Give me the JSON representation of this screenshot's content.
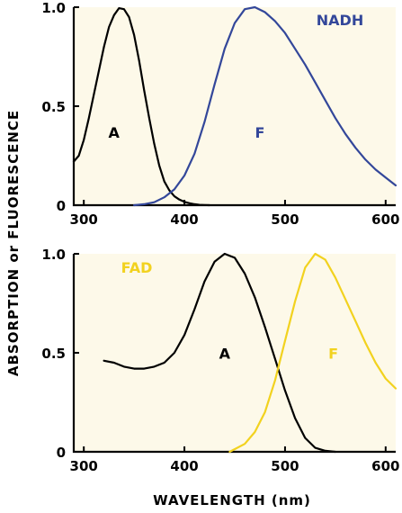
{
  "ylabel": "ABSORPTION or FLUORESCENCE",
  "xlabel": "WAVELENGTH (nm)",
  "colors": {
    "black": "#000000",
    "blue": "#33479a",
    "yellow": "#f2d21f",
    "background": "#fdf9e9"
  },
  "chart_data": [
    {
      "type": "line",
      "compound": "NADH",
      "compound_color": "#33479a",
      "xlim": [
        290,
        610
      ],
      "ylim": [
        0,
        1.0
      ],
      "xticks": [
        300,
        400,
        500,
        600
      ],
      "yticks": [
        0,
        0.5,
        1.0
      ],
      "ytick_labels": [
        "0",
        "0.5",
        "1.0"
      ],
      "series": [
        {
          "name": "A",
          "color": "#000000",
          "label_at": [
            330,
            0.34
          ],
          "x": [
            290,
            295,
            300,
            305,
            310,
            315,
            320,
            325,
            330,
            335,
            340,
            345,
            350,
            355,
            360,
            365,
            370,
            375,
            380,
            385,
            390,
            395,
            400,
            405,
            410,
            415,
            420,
            425
          ],
          "y": [
            0.22,
            0.25,
            0.33,
            0.44,
            0.56,
            0.68,
            0.8,
            0.9,
            0.96,
            0.995,
            0.99,
            0.95,
            0.86,
            0.73,
            0.58,
            0.44,
            0.31,
            0.2,
            0.12,
            0.075,
            0.045,
            0.028,
            0.017,
            0.01,
            0.005,
            0.002,
            0.001,
            0.0
          ]
        },
        {
          "name": "F",
          "color": "#33479a",
          "label_at": [
            475,
            0.34
          ],
          "x": [
            350,
            360,
            370,
            380,
            390,
            400,
            410,
            420,
            430,
            440,
            450,
            460,
            470,
            480,
            490,
            500,
            510,
            520,
            530,
            540,
            550,
            560,
            570,
            580,
            590,
            600,
            610
          ],
          "y": [
            0.0,
            0.005,
            0.015,
            0.04,
            0.08,
            0.15,
            0.26,
            0.42,
            0.61,
            0.79,
            0.92,
            0.99,
            1.0,
            0.975,
            0.93,
            0.87,
            0.79,
            0.71,
            0.62,
            0.53,
            0.44,
            0.36,
            0.29,
            0.23,
            0.18,
            0.14,
            0.1
          ]
        }
      ]
    },
    {
      "type": "line",
      "compound": "FAD",
      "compound_color": "#f2d21f",
      "xlim": [
        290,
        610
      ],
      "ylim": [
        0,
        1.0
      ],
      "xticks": [
        300,
        400,
        500,
        600
      ],
      "yticks": [
        0,
        0.5,
        1.0
      ],
      "ytick_labels": [
        "0",
        "0.5",
        "1.0"
      ],
      "series": [
        {
          "name": "A",
          "color": "#000000",
          "label_at": [
            440,
            0.47
          ],
          "x": [
            320,
            330,
            340,
            350,
            360,
            370,
            380,
            390,
            400,
            410,
            420,
            430,
            440,
            450,
            460,
            470,
            480,
            490,
            500,
            510,
            520,
            530,
            540,
            550
          ],
          "y": [
            0.46,
            0.45,
            0.43,
            0.42,
            0.42,
            0.43,
            0.45,
            0.5,
            0.59,
            0.72,
            0.86,
            0.96,
            1.0,
            0.98,
            0.9,
            0.78,
            0.63,
            0.47,
            0.31,
            0.17,
            0.07,
            0.02,
            0.005,
            0.0
          ]
        },
        {
          "name": "F",
          "color": "#f2d21f",
          "label_at": [
            548,
            0.47
          ],
          "x": [
            445,
            460,
            470,
            480,
            490,
            500,
            510,
            520,
            530,
            540,
            550,
            560,
            570,
            580,
            590,
            600,
            610
          ],
          "y": [
            0.0,
            0.04,
            0.1,
            0.2,
            0.36,
            0.56,
            0.76,
            0.93,
            1.0,
            0.97,
            0.88,
            0.77,
            0.66,
            0.55,
            0.45,
            0.37,
            0.32
          ]
        }
      ]
    }
  ]
}
